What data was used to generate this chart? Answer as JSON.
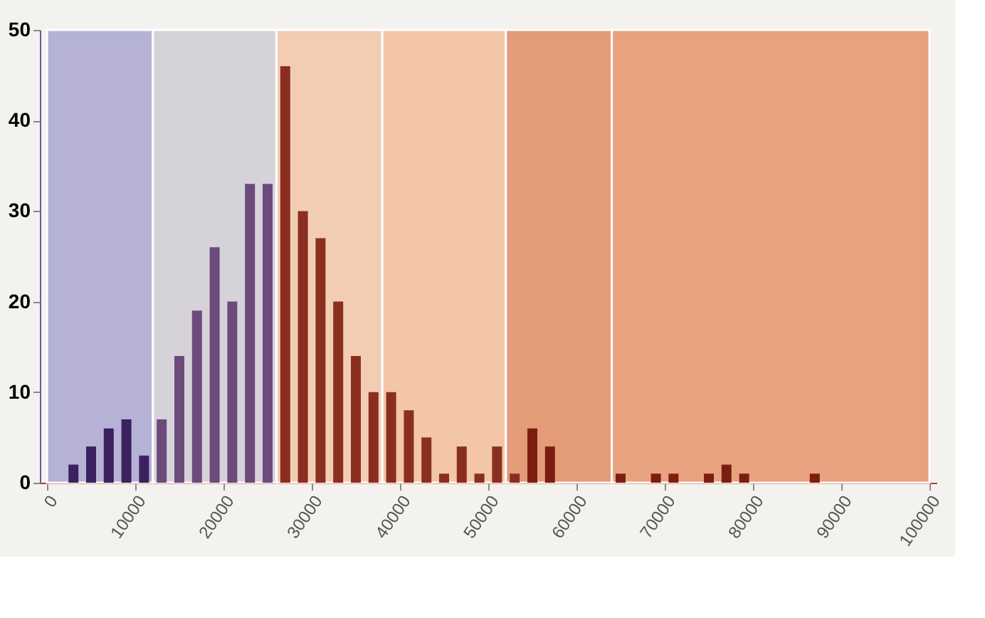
{
  "chart_data": {
    "type": "bar",
    "x": [
      3000,
      5000,
      7000,
      9000,
      11000,
      13000,
      15000,
      17000,
      19000,
      21000,
      23000,
      25000,
      27000,
      29000,
      31000,
      33000,
      35000,
      37000,
      39000,
      41000,
      43000,
      45000,
      47000,
      49000,
      51000,
      53000,
      55000,
      57000,
      65000,
      69000,
      71000,
      75000,
      77000,
      79000,
      87000
    ],
    "values": [
      2,
      4,
      6,
      7,
      3,
      7,
      14,
      19,
      26,
      20,
      33,
      33,
      46,
      30,
      27,
      20,
      14,
      10,
      10,
      8,
      5,
      1,
      4,
      1,
      4,
      1,
      6,
      4,
      1,
      1,
      1,
      1,
      2,
      1,
      1
    ],
    "colors": [
      "#3b2160",
      "#3b2160",
      "#3b2160",
      "#3b2160",
      "#3b2160",
      "#6c4a7c",
      "#6c4a7c",
      "#6c4a7c",
      "#6c4a7c",
      "#6c4a7c",
      "#6c4a7c",
      "#6c4a7c",
      "#8a2f1f",
      "#8a2f1f",
      "#8a2f1f",
      "#8a2f1f",
      "#8a2f1f",
      "#8a2f1f",
      "#8a2f1f",
      "#8a2f1f",
      "#8a2f1f",
      "#8a2f1f",
      "#8a2f1f",
      "#8a2f1f",
      "#8a2f1f",
      "#8a2f1f",
      "#7a1f10",
      "#7a1f10",
      "#7a1f10",
      "#7a1f10",
      "#7a1f10",
      "#7a1f10",
      "#7a1f10",
      "#7a1f10",
      "#7a1f10"
    ],
    "xlim": [
      0,
      100000
    ],
    "xticks": [
      0,
      10000,
      20000,
      30000,
      40000,
      50000,
      60000,
      70000,
      80000,
      90000,
      100000
    ],
    "ylim": [
      0,
      50
    ],
    "yticks": [
      0,
      10,
      20,
      30,
      40,
      50
    ],
    "grid": false,
    "bands": [
      {
        "axis": "x",
        "from": 0,
        "to": 12000,
        "color": "#b5b2d6"
      },
      {
        "axis": "x",
        "from": 12000,
        "to": 26000,
        "color": "#d6d2da"
      },
      {
        "axis": "x",
        "from": 26000,
        "to": 38000,
        "color": "#f2cdb4"
      },
      {
        "axis": "x",
        "from": 38000,
        "to": 52000,
        "color": "#f2c6a6"
      },
      {
        "axis": "x",
        "from": 52000,
        "to": 64000,
        "color": "#e49b78"
      },
      {
        "axis": "x",
        "from": 64000,
        "to": 100000,
        "color": "#e9a27f"
      }
    ]
  }
}
